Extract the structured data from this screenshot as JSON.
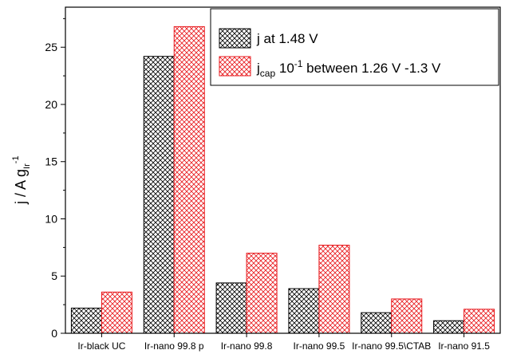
{
  "chart_data": {
    "type": "bar",
    "categories": [
      "Ir-black UC",
      "Ir-nano 99.8 p",
      "Ir-nano 99.8",
      "Ir-nano 99.5",
      "Ir-nano 99.5\\CTAB",
      "Ir-nano 91.5"
    ],
    "series": [
      {
        "name": "j at 1.48 V",
        "values": [
          2.2,
          24.2,
          4.4,
          3.9,
          1.8,
          1.1
        ],
        "color": "#000000",
        "pattern": "crosshatch"
      },
      {
        "name": "j_cap 10^-1 between 1.26 V -1.3 V",
        "values": [
          3.6,
          26.8,
          7.0,
          7.7,
          3.0,
          2.1
        ],
        "color": "#e8181c",
        "pattern": "crosshatch"
      }
    ],
    "ylabel": "j / A g_Ir^-1",
    "ylabel_parts": {
      "main": "j / A g",
      "sub": "Ir",
      "sup": "-1"
    },
    "xlabel": "",
    "ylim": [
      0,
      28.5
    ],
    "yticks": [
      "0",
      "5",
      "10",
      "15",
      "20",
      "25"
    ],
    "legend": {
      "placement": "top-right",
      "entries": [
        {
          "label": "j at 1.48 V"
        },
        {
          "label_parts": {
            "base": "j",
            "sub": "cap",
            "mid": " 10",
            "sup": "-1",
            "rest": " between 1.26 V -1.3 V"
          }
        }
      ]
    },
    "grid": false
  }
}
